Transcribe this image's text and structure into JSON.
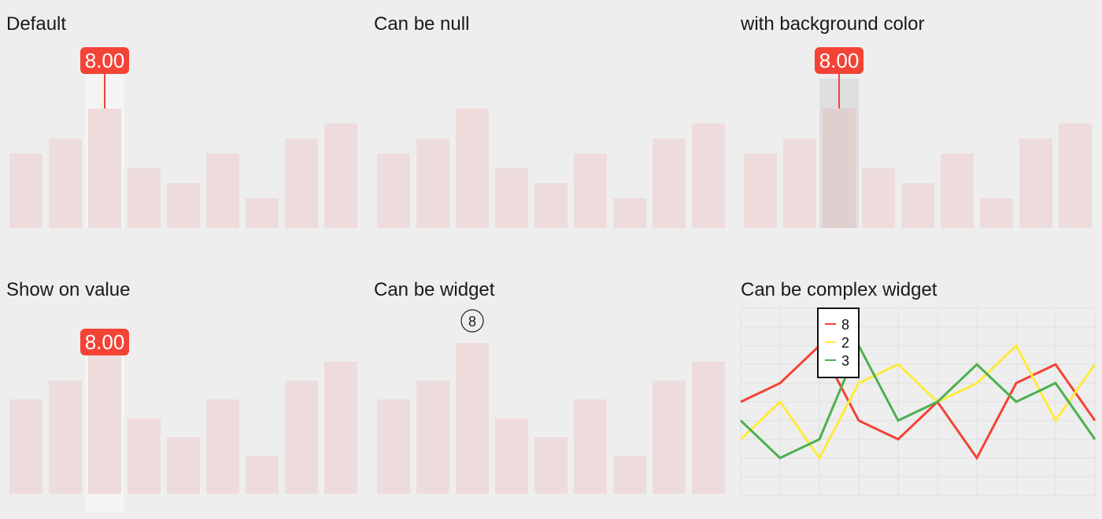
{
  "colors": {
    "background": "#eeeeee",
    "bar": "#eedcdc",
    "tooltip": "#f44336",
    "tooltip_text": "#ffffff",
    "hover_light": "#f4f4f4",
    "hover_dark": "#dedede",
    "line_red": "#f44336",
    "line_yellow": "#ffeb3b",
    "line_green": "#4caf50",
    "grid": "#e0e0e0"
  },
  "panels": {
    "default": {
      "title": "Default"
    },
    "null": {
      "title": "Can be null"
    },
    "bg": {
      "title": "with background color"
    },
    "value": {
      "title": "Show on value"
    },
    "widget": {
      "title": "Can be widget"
    },
    "complex": {
      "title": "Can be complex widget"
    }
  },
  "chart_data": [
    {
      "panel": "default",
      "type": "bar",
      "values": [
        5,
        6,
        8,
        4,
        3,
        5,
        2,
        6,
        7
      ],
      "ylim": [
        0,
        10
      ],
      "highlight_index": 2,
      "tooltip": "8.00",
      "tooltip_style": "above-with-line"
    },
    {
      "panel": "null",
      "type": "bar",
      "values": [
        5,
        6,
        8,
        4,
        3,
        5,
        2,
        6,
        7
      ],
      "ylim": [
        0,
        10
      ]
    },
    {
      "panel": "bg",
      "type": "bar",
      "values": [
        5,
        6,
        8,
        4,
        3,
        5,
        2,
        6,
        7
      ],
      "ylim": [
        0,
        10
      ],
      "highlight_index": 2,
      "tooltip": "8.00",
      "tooltip_style": "above-with-line-dark-bg"
    },
    {
      "panel": "value",
      "type": "bar",
      "values": [
        5,
        6,
        8,
        4,
        3,
        5,
        2,
        6,
        7
      ],
      "ylim": [
        0,
        10
      ],
      "highlight_index": 2,
      "tooltip": "8.00",
      "tooltip_style": "on-value"
    },
    {
      "panel": "widget",
      "type": "bar",
      "values": [
        5,
        6,
        8,
        4,
        3,
        5,
        2,
        6,
        7
      ],
      "ylim": [
        0,
        10
      ],
      "highlight_index": 2,
      "tooltip": "8",
      "tooltip_style": "circle"
    },
    {
      "panel": "complex",
      "type": "line",
      "x": [
        0,
        1,
        2,
        3,
        4,
        5,
        6,
        7,
        8,
        9
      ],
      "ylim": [
        0,
        10
      ],
      "series": [
        {
          "values": [
            5,
            6,
            8,
            4,
            3,
            5,
            2,
            6,
            7,
            4
          ],
          "color": "#f44336"
        },
        {
          "values": [
            3,
            5,
            2,
            6,
            7,
            5,
            6,
            8,
            4,
            7
          ],
          "color": "#ffeb3b"
        },
        {
          "values": [
            4,
            2,
            3,
            8,
            4,
            5,
            7,
            5,
            6,
            3
          ],
          "color": "#4caf50"
        }
      ],
      "legend": {
        "highlight_x": 2,
        "entries": [
          "8",
          "2",
          "3"
        ],
        "position": "top-left"
      }
    }
  ]
}
